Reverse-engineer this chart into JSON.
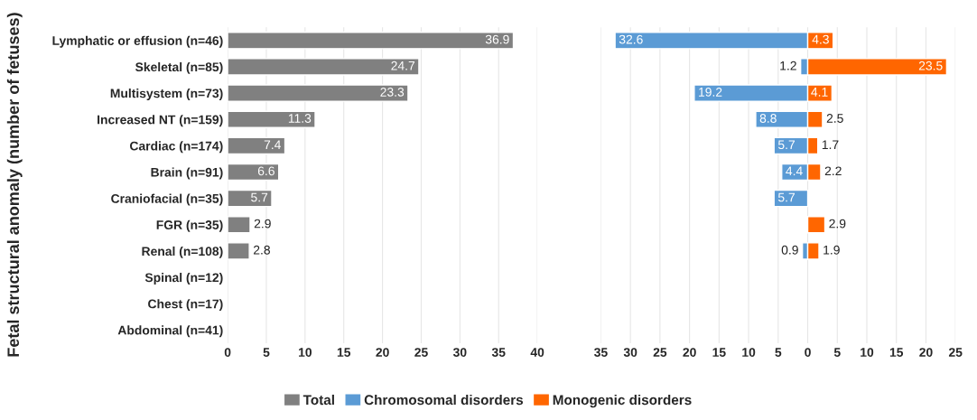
{
  "chart_data": [
    {
      "type": "bar",
      "orientation": "horizontal",
      "ylabel": "Fetal structural anomaly (number of fetuses)",
      "categories": [
        "Lymphatic or effusion (n=46)",
        "Skeletal (n=85)",
        "Multisystem (n=73)",
        "Increased NT (n=159)",
        "Cardiac (n=174)",
        "Brain (n=91)",
        "Craniofacial (n=35)",
        "FGR (n=35)",
        "Renal (n=108)",
        "Spinal (n=12)",
        "Chest (n=17)",
        "Abdominal (n=41)"
      ],
      "series": [
        {
          "name": "Total",
          "color": "#808080",
          "values": [
            36.9,
            24.7,
            23.3,
            11.3,
            7.4,
            6.6,
            5.7,
            2.9,
            2.8,
            null,
            null,
            null
          ]
        }
      ],
      "data_labels": true,
      "xlim": [
        0,
        40
      ],
      "xticks": [
        0,
        5,
        10,
        15,
        20,
        25,
        30,
        35,
        40
      ],
      "grid": "x",
      "legend": "bottom"
    },
    {
      "type": "bar",
      "orientation": "horizontal",
      "series": [
        {
          "name": "Chromosomal disorders",
          "color": "#5b9bd5",
          "values": [
            32.6,
            1.2,
            19.2,
            8.8,
            5.7,
            4.4,
            5.7,
            null,
            0.9,
            null,
            null,
            null
          ],
          "base": [
            -32.6,
            -1.2,
            -19.2,
            -8.8,
            -5.7,
            -4.4,
            -5.7,
            null,
            -0.9,
            null,
            null,
            null
          ]
        },
        {
          "name": "Monogenic disorders",
          "color": "#ff6600",
          "values": [
            4.3,
            23.5,
            4.1,
            2.5,
            1.7,
            2.2,
            null,
            2.9,
            1.9,
            null,
            null,
            null
          ]
        }
      ],
      "data_labels": true,
      "xlim": [
        -35,
        25
      ],
      "xticks": [
        {
          "value": -35,
          "label": "35"
        },
        {
          "value": -30,
          "label": "30"
        },
        {
          "value": -25,
          "label": "25"
        },
        {
          "value": -20,
          "label": "20"
        },
        {
          "value": -15,
          "label": "15"
        },
        {
          "value": -10,
          "label": "10"
        },
        {
          "value": -5,
          "label": "5"
        },
        0,
        5,
        10,
        15,
        20,
        25
      ],
      "grid": "x",
      "tick_labels": "x",
      "legend": "bottom"
    }
  ]
}
